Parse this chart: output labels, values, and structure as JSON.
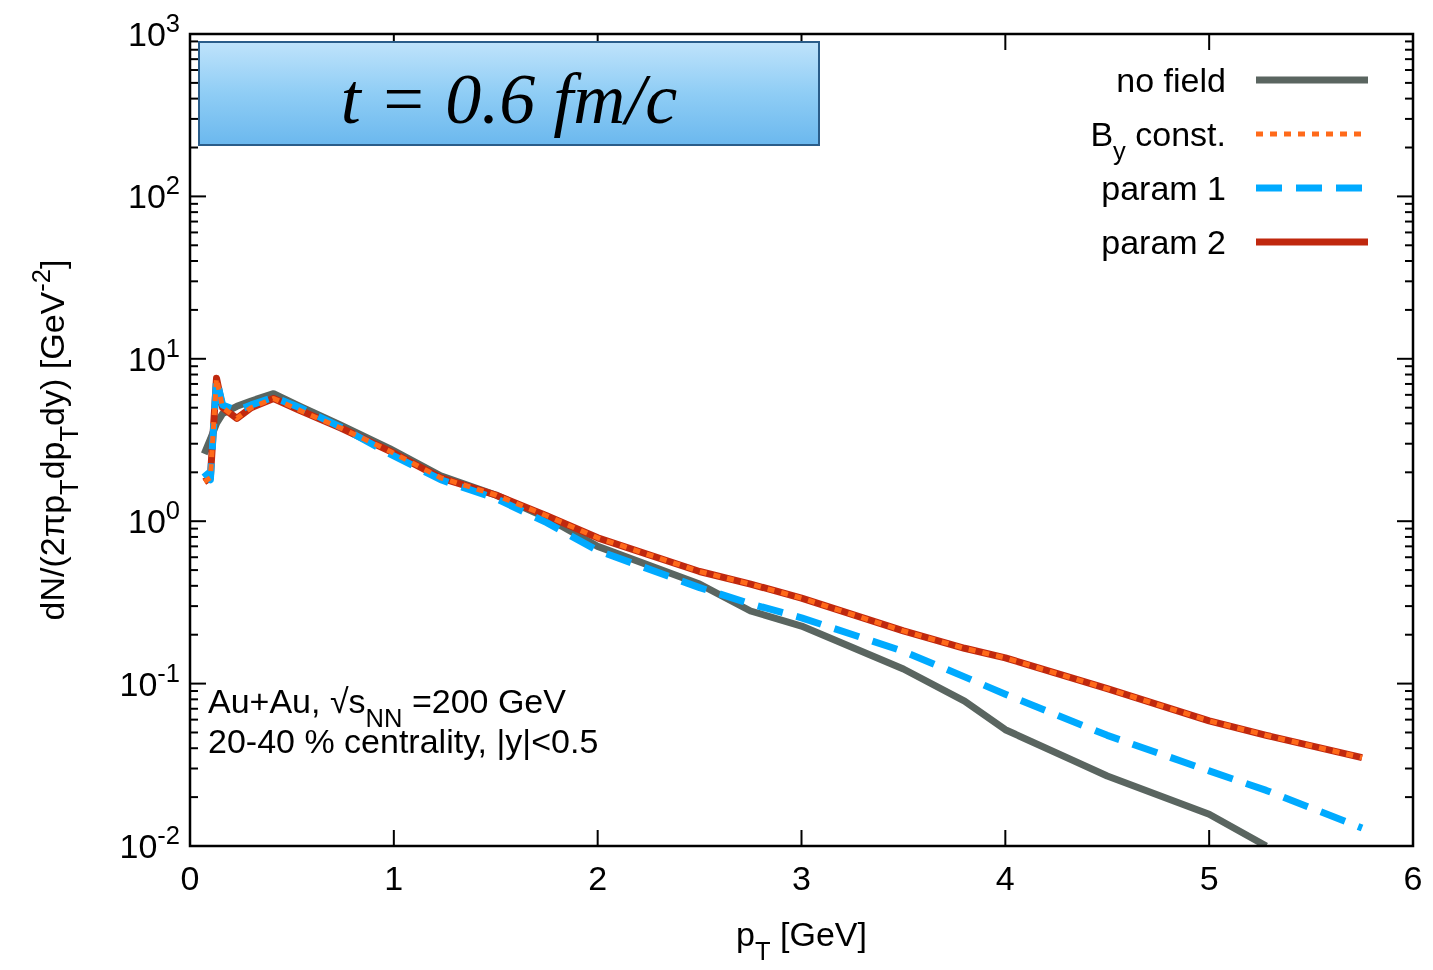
{
  "chart_data": {
    "type": "line",
    "title": "t = 0.6 fm/c",
    "xlabel": "p$_{T}$ [GeV]",
    "ylabel": "dN/(2πp$_{T}$dp$_{T}$dy) [GeV$^{-2}$]",
    "annotations": [
      "Au+Au, √s$_{NN}$ =200 GeV",
      "20-40 % centrality, |y|<0.5"
    ],
    "x": [
      0.07,
      0.1,
      0.13,
      0.16,
      0.23,
      0.3,
      0.41,
      0.54,
      0.74,
      0.98,
      1.23,
      1.5,
      1.75,
      2,
      2.5,
      2.75,
      3,
      3.5,
      3.8,
      4,
      4.5,
      5,
      5.28,
      5.75
    ],
    "series": [
      {
        "name": "no field",
        "color": "#5a6560",
        "line_style": "solid",
        "values": [
          2.6,
          3.2,
          4.0,
          4.6,
          5.1,
          5.5,
          6.1,
          5.1,
          3.9,
          2.8,
          1.9,
          1.45,
          1.05,
          0.7,
          0.41,
          0.28,
          0.226,
          0.123,
          0.078,
          0.052,
          0.027,
          0.0157,
          0.01,
          null
        ]
      },
      {
        "name": "B$_{y}$ const.",
        "color": "#ff6a1a",
        "line_style": "dotted",
        "values": [
          1.75,
          1.85,
          7.6,
          5.0,
          4.3,
          5.0,
          5.7,
          4.8,
          3.75,
          2.7,
          1.85,
          1.45,
          1.08,
          0.79,
          0.49,
          0.41,
          0.336,
          0.211,
          0.165,
          0.144,
          0.093,
          0.059,
          0.048,
          0.035
        ]
      },
      {
        "name": "param 1",
        "color": "#00aaff",
        "line_style": "dashed",
        "values": [
          2.0,
          1.8,
          7.5,
          5.2,
          4.8,
          5.2,
          5.8,
          5.0,
          3.8,
          2.6,
          1.8,
          1.38,
          0.98,
          0.66,
          0.39,
          0.31,
          0.254,
          0.158,
          0.11,
          0.086,
          0.048,
          0.029,
          0.022,
          0.0129
        ]
      },
      {
        "name": "param 2",
        "color": "#c0280e",
        "line_style": "solid",
        "values": [
          1.75,
          1.85,
          7.6,
          5.0,
          4.3,
          5.0,
          5.7,
          4.8,
          3.75,
          2.7,
          1.85,
          1.45,
          1.08,
          0.79,
          0.49,
          0.41,
          0.336,
          0.211,
          0.165,
          0.144,
          0.093,
          0.059,
          0.048,
          0.035
        ]
      }
    ],
    "xlim": [
      0,
      6
    ],
    "xticks": [
      0,
      1,
      2,
      3,
      4,
      5,
      6
    ],
    "ylim": [
      0.01,
      1000
    ],
    "log": "y",
    "yticks": [
      {
        "value": 0.01,
        "label": "10$^{-2}$"
      },
      {
        "value": 0.1,
        "label": "10$^{-1}$"
      },
      {
        "value": 1,
        "label": "10$^{0}$"
      },
      {
        "value": 10,
        "label": "10$^{1}$"
      },
      {
        "value": 100,
        "label": "10$^{2}$"
      },
      {
        "value": 1000,
        "label": "10$^{3}$"
      },
      {
        "value": 0.02,
        "label": null
      },
      {
        "value": 0.03,
        "label": null
      },
      {
        "value": 0.04,
        "label": null
      },
      {
        "value": 0.05,
        "label": null
      },
      {
        "value": 0.06,
        "label": null
      },
      {
        "value": 0.07,
        "label": null
      },
      {
        "value": 0.08,
        "label": null
      },
      {
        "value": 0.09,
        "label": null
      },
      {
        "value": 0.2,
        "label": null
      },
      {
        "value": 0.3,
        "label": null
      },
      {
        "value": 0.4,
        "label": null
      },
      {
        "value": 0.5,
        "label": null
      },
      {
        "value": 0.6,
        "label": null
      },
      {
        "value": 0.7,
        "label": null
      },
      {
        "value": 0.8,
        "label": null
      },
      {
        "value": 0.9,
        "label": null
      },
      {
        "value": 2,
        "label": null
      },
      {
        "value": 3,
        "label": null
      },
      {
        "value": 4,
        "label": null
      },
      {
        "value": 5,
        "label": null
      },
      {
        "value": 6,
        "label": null
      },
      {
        "value": 7,
        "label": null
      },
      {
        "value": 8,
        "label": null
      },
      {
        "value": 9,
        "label": null
      },
      {
        "value": 20,
        "label": null
      },
      {
        "value": 30,
        "label": null
      },
      {
        "value": 40,
        "label": null
      },
      {
        "value": 50,
        "label": null
      },
      {
        "value": 60,
        "label": null
      },
      {
        "value": 70,
        "label": null
      },
      {
        "value": 80,
        "label": null
      },
      {
        "value": 90,
        "label": null
      },
      {
        "value": 200,
        "label": null
      },
      {
        "value": 300,
        "label": null
      },
      {
        "value": 400,
        "label": null
      },
      {
        "value": 500,
        "label": null
      },
      {
        "value": 600,
        "label": null
      },
      {
        "value": 700,
        "label": null
      },
      {
        "value": 800,
        "label": null
      },
      {
        "value": 900,
        "label": null
      }
    ],
    "grid": false,
    "legend": "top right"
  }
}
